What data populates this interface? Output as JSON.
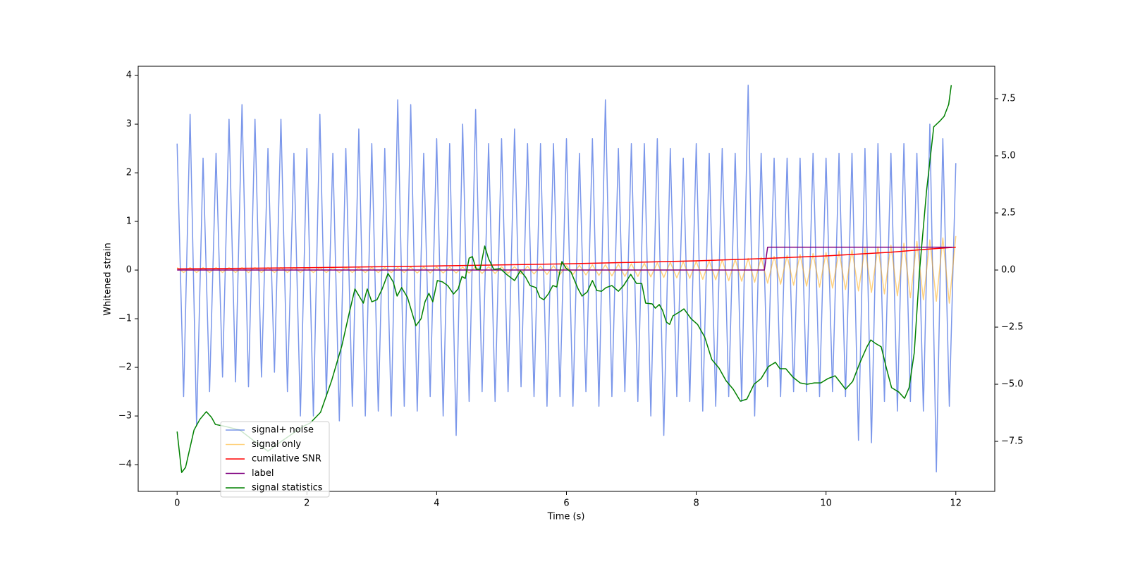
{
  "chart_data": {
    "type": "line",
    "xlabel": "Time (s)",
    "ylabel": "Whitened strain",
    "xlim": [
      -0.6,
      12.6
    ],
    "xticks": [
      0,
      2,
      4,
      6,
      8,
      10,
      12
    ],
    "ylim": [
      -4.55,
      4.19
    ],
    "yticks": [
      {
        "value": -4,
        "label": "−4"
      },
      {
        "value": -3,
        "label": "−3"
      },
      {
        "value": -2,
        "label": "−2"
      },
      {
        "value": -1,
        "label": "−1"
      },
      0,
      1,
      2,
      3,
      4
    ],
    "y2lim": [
      -9.69,
      8.92
    ],
    "y2ticks": [
      {
        "value": -7.5,
        "label": "−7.5"
      },
      {
        "value": -5.0,
        "label": "−5.0"
      },
      {
        "value": -2.5,
        "label": "−2.5"
      },
      {
        "value": 0.0,
        "label": "0.0"
      },
      {
        "value": 2.5,
        "label": "2.5"
      },
      {
        "value": 5.0,
        "label": "5.0"
      },
      {
        "value": 7.5,
        "label": "7.5"
      }
    ],
    "legend": "lower left",
    "series": [
      {
        "name": "signal+ noise",
        "color": "#4169e1",
        "alpha": 0.7,
        "x": [
          0,
          0.1,
          0.2,
          0.3,
          0.4,
          0.5,
          0.6,
          0.7,
          0.8,
          0.9,
          1,
          1.1,
          1.2,
          1.3,
          1.4,
          1.5,
          1.6,
          1.7,
          1.8,
          1.9,
          2,
          2.1,
          2.2,
          2.3,
          2.4,
          2.5,
          2.6,
          2.7,
          2.8,
          2.9,
          3,
          3.1,
          3.2,
          3.3,
          3.4,
          3.5,
          3.6,
          3.7,
          3.8,
          3.9,
          4,
          4.1,
          4.2,
          4.3,
          4.4,
          4.5,
          4.6,
          4.7,
          4.8,
          4.9,
          5,
          5.1,
          5.2,
          5.3,
          5.4,
          5.5,
          5.6,
          5.7,
          5.8,
          5.9,
          6,
          6.1,
          6.2,
          6.3,
          6.4,
          6.5,
          6.6,
          6.7,
          6.8,
          6.9,
          7,
          7.1,
          7.2,
          7.3,
          7.4,
          7.5,
          7.6,
          7.7,
          7.8,
          7.9,
          8,
          8.1,
          8.2,
          8.3,
          8.4,
          8.5,
          8.6,
          8.7,
          8.8,
          8.9,
          9,
          9.1,
          9.2,
          9.3,
          9.4,
          9.5,
          9.6,
          9.7,
          9.8,
          9.9,
          10,
          10.1,
          10.2,
          10.3,
          10.4,
          10.5,
          10.6,
          10.7,
          10.8,
          10.9,
          11,
          11.1,
          11.2,
          11.3,
          11.4,
          11.5,
          11.6,
          11.7,
          11.8,
          11.9,
          12
        ],
        "values": [
          2.6,
          -2.6,
          3.2,
          -3.2,
          2.3,
          -2.5,
          2.4,
          -2.2,
          3.1,
          -2.3,
          3.4,
          -2.4,
          3.1,
          -2.2,
          2.5,
          -2.1,
          3.1,
          -2.5,
          2.4,
          -3.0,
          2.5,
          -3.0,
          3.2,
          -2.6,
          2.4,
          -3.1,
          2.5,
          -2.8,
          2.9,
          -3.0,
          2.6,
          -2.9,
          2.5,
          -3.0,
          3.5,
          -2.8,
          3.4,
          -2.9,
          2.4,
          -2.6,
          2.7,
          -3.0,
          2.6,
          -3.4,
          3.0,
          -2.7,
          3.3,
          -2.5,
          2.6,
          -2.7,
          2.7,
          -2.5,
          2.9,
          -2.4,
          2.6,
          -2.6,
          2.6,
          -2.8,
          2.6,
          -2.6,
          2.7,
          -2.8,
          2.4,
          -2.5,
          2.7,
          -2.8,
          3.5,
          -2.6,
          2.5,
          -2.5,
          2.6,
          -2.7,
          2.6,
          -3.0,
          2.7,
          -3.4,
          2.5,
          -2.6,
          2.3,
          -2.7,
          2.6,
          -2.9,
          2.4,
          -2.8,
          2.5,
          -2.6,
          2.4,
          -2.7,
          3.8,
          -3.0,
          2.4,
          -2.4,
          2.3,
          -2.6,
          2.3,
          -2.5,
          2.3,
          -2.5,
          2.4,
          -2.6,
          2.3,
          -2.5,
          2.4,
          -2.6,
          2.4,
          -3.5,
          2.5,
          -3.55,
          2.6,
          -2.7,
          2.4,
          -2.9,
          2.6,
          -2.7,
          2.4,
          -2.9,
          3.0,
          -4.15,
          2.7,
          -2.8,
          2.2
        ]
      },
      {
        "name": "signal only",
        "color": "#ffa500",
        "alpha": 0.5,
        "x": [
          0,
          0.1,
          0.2,
          0.3,
          0.4,
          0.5,
          0.6,
          0.7,
          0.8,
          0.9,
          1,
          1.1,
          1.2,
          1.3,
          1.4,
          1.5,
          1.6,
          1.7,
          1.8,
          1.9,
          2,
          2.1,
          2.2,
          2.3,
          2.4,
          2.5,
          2.6,
          2.7,
          2.8,
          2.9,
          3,
          3.1,
          3.2,
          3.3,
          3.4,
          3.5,
          3.6,
          3.7,
          3.8,
          3.9,
          4,
          4.1,
          4.2,
          4.3,
          4.4,
          4.5,
          4.6,
          4.7,
          4.8,
          4.9,
          5,
          5.1,
          5.2,
          5.3,
          5.4,
          5.5,
          5.6,
          5.7,
          5.8,
          5.9,
          6,
          6.1,
          6.2,
          6.3,
          6.4,
          6.5,
          6.6,
          6.7,
          6.8,
          6.9,
          7,
          7.1,
          7.2,
          7.3,
          7.4,
          7.5,
          7.6,
          7.7,
          7.8,
          7.9,
          8,
          8.1,
          8.2,
          8.3,
          8.4,
          8.5,
          8.6,
          8.7,
          8.8,
          8.9,
          9,
          9.1,
          9.2,
          9.3,
          9.4,
          9.5,
          9.6,
          9.7,
          9.8,
          9.9,
          10,
          10.1,
          10.2,
          10.3,
          10.4,
          10.5,
          10.6,
          10.7,
          10.8,
          10.9,
          11,
          11.1,
          11.2,
          11.3,
          11.4,
          11.5,
          11.6,
          11.7,
          11.8,
          11.9,
          12
        ],
        "values": [
          0.05,
          -0.05,
          0.05,
          -0.05,
          0.05,
          -0.05,
          0.05,
          -0.05,
          0.05,
          -0.05,
          0.05,
          -0.05,
          0.05,
          -0.05,
          0.05,
          -0.05,
          0.05,
          -0.05,
          0.05,
          -0.05,
          0.05,
          -0.05,
          0.05,
          -0.05,
          0.05,
          -0.05,
          0.05,
          -0.05,
          0.05,
          -0.05,
          0.05,
          -0.05,
          0.05,
          -0.05,
          0.05,
          -0.05,
          0.06,
          -0.06,
          0.06,
          -0.06,
          0.06,
          -0.06,
          0.06,
          -0.06,
          0.06,
          -0.06,
          0.07,
          -0.07,
          0.07,
          -0.07,
          0.07,
          -0.07,
          0.07,
          -0.08,
          0.08,
          -0.08,
          0.08,
          -0.09,
          0.09,
          -0.09,
          0.09,
          -0.09,
          0.1,
          -0.1,
          0.11,
          -0.11,
          0.11,
          -0.12,
          0.12,
          -0.13,
          0.13,
          -0.13,
          0.14,
          -0.14,
          0.15,
          -0.15,
          0.16,
          -0.16,
          0.17,
          -0.17,
          0.18,
          -0.19,
          0.19,
          -0.2,
          0.21,
          -0.22,
          0.22,
          -0.23,
          0.24,
          -0.25,
          0.26,
          -0.27,
          0.28,
          -0.29,
          0.3,
          -0.31,
          0.32,
          -0.33,
          0.34,
          -0.35,
          0.36,
          -0.37,
          0.39,
          -0.4,
          0.42,
          -0.43,
          0.45,
          -0.46,
          0.48,
          -0.49,
          0.51,
          -0.53,
          0.55,
          -0.57,
          0.59,
          -0.61,
          0.62,
          -0.64,
          0.66,
          -0.68,
          0.7
        ]
      },
      {
        "name": "cumilative SNR",
        "color": "#ff0000",
        "alpha": 1,
        "axis": "y2",
        "x": [
          0,
          2,
          4,
          6,
          8,
          9,
          10,
          11,
          11.5,
          12
        ],
        "values": [
          0.05,
          0.1,
          0.18,
          0.27,
          0.4,
          0.5,
          0.62,
          0.78,
          0.9,
          1.0
        ]
      },
      {
        "name": "label",
        "color": "#800080",
        "alpha": 1,
        "axis": "y2",
        "x": [
          0,
          9.05,
          9.1,
          11.95
        ],
        "values": [
          0,
          0,
          1,
          1
        ]
      },
      {
        "name": "signal statistics",
        "color": "#008000",
        "alpha": 1,
        "axis": "y2",
        "x": [
          0,
          0.07,
          0.13,
          0.26,
          0.35,
          0.45,
          0.53,
          0.59,
          0.75,
          0.97,
          1.18,
          1.4,
          1.62,
          1.94,
          2.05,
          2.21,
          2.38,
          2.54,
          2.65,
          2.74,
          2.87,
          2.93,
          3.0,
          3.08,
          3.16,
          3.25,
          3.33,
          3.39,
          3.46,
          3.55,
          3.68,
          3.76,
          3.82,
          3.88,
          3.94,
          4.01,
          4.09,
          4.17,
          4.26,
          4.33,
          4.39,
          4.44,
          4.5,
          4.55,
          4.61,
          4.67,
          4.74,
          4.8,
          4.88,
          4.98,
          5.09,
          5.2,
          5.29,
          5.37,
          5.44,
          5.53,
          5.59,
          5.65,
          5.72,
          5.79,
          5.85,
          5.93,
          5.99,
          6.07,
          6.18,
          6.24,
          6.32,
          6.4,
          6.47,
          6.54,
          6.61,
          6.7,
          6.8,
          6.88,
          6.99,
          7.08,
          7.16,
          7.22,
          7.32,
          7.37,
          7.43,
          7.48,
          7.54,
          7.59,
          7.64,
          7.75,
          7.81,
          7.92,
          8.02,
          8.13,
          8.24,
          8.35,
          8.46,
          8.57,
          8.68,
          8.78,
          8.89,
          9.0,
          9.11,
          9.22,
          9.29,
          9.38,
          9.49,
          9.6,
          9.71,
          9.82,
          9.92,
          10.03,
          10.14,
          10.25,
          10.3,
          10.41,
          10.52,
          10.63,
          10.69,
          10.76,
          10.85,
          10.93,
          11.01,
          11.12,
          11.21,
          11.28,
          11.36,
          11.44,
          11.55,
          11.66,
          11.75,
          11.82,
          11.89,
          11.93
        ],
        "values": [
          -7.07,
          -8.86,
          -8.64,
          -7.01,
          -6.54,
          -6.2,
          -6.45,
          -6.76,
          -6.85,
          -7.01,
          -7.47,
          -7.93,
          -7.47,
          -6.85,
          -6.7,
          -6.23,
          -4.85,
          -3.3,
          -1.91,
          -0.83,
          -1.45,
          -0.83,
          -1.39,
          -1.3,
          -0.83,
          -0.15,
          -0.52,
          -1.14,
          -0.77,
          -1.2,
          -2.44,
          -2.13,
          -1.39,
          -1.02,
          -1.39,
          -0.46,
          -0.52,
          -0.68,
          -1.05,
          -0.83,
          -0.28,
          -0.37,
          0.52,
          0.59,
          0.03,
          0.03,
          1.05,
          0.49,
          0.03,
          0.06,
          -0.22,
          -0.46,
          -0.03,
          -0.31,
          -0.68,
          -0.77,
          -1.2,
          -1.3,
          -1.05,
          -0.68,
          -0.74,
          0.37,
          0.09,
          -0.09,
          -0.83,
          -1.14,
          -0.96,
          -0.46,
          -0.9,
          -0.93,
          -0.77,
          -0.68,
          -0.93,
          -0.68,
          -0.19,
          -0.59,
          -0.59,
          -1.45,
          -1.48,
          -1.67,
          -1.51,
          -1.76,
          -2.28,
          -2.38,
          -2.01,
          -1.82,
          -1.7,
          -2.13,
          -2.38,
          -2.93,
          -3.92,
          -4.29,
          -4.85,
          -5.22,
          -5.74,
          -5.65,
          -5.0,
          -4.75,
          -4.23,
          -4.04,
          -4.32,
          -4.32,
          -4.69,
          -4.94,
          -5.0,
          -4.94,
          -4.94,
          -4.75,
          -4.63,
          -5.03,
          -5.22,
          -4.88,
          -4.07,
          -3.36,
          -3.06,
          -3.21,
          -3.36,
          -4.29,
          -5.15,
          -5.34,
          -5.62,
          -5.15,
          -3.61,
          -0.06,
          3.49,
          6.27,
          6.51,
          6.73,
          7.25,
          8.09
        ]
      }
    ]
  }
}
